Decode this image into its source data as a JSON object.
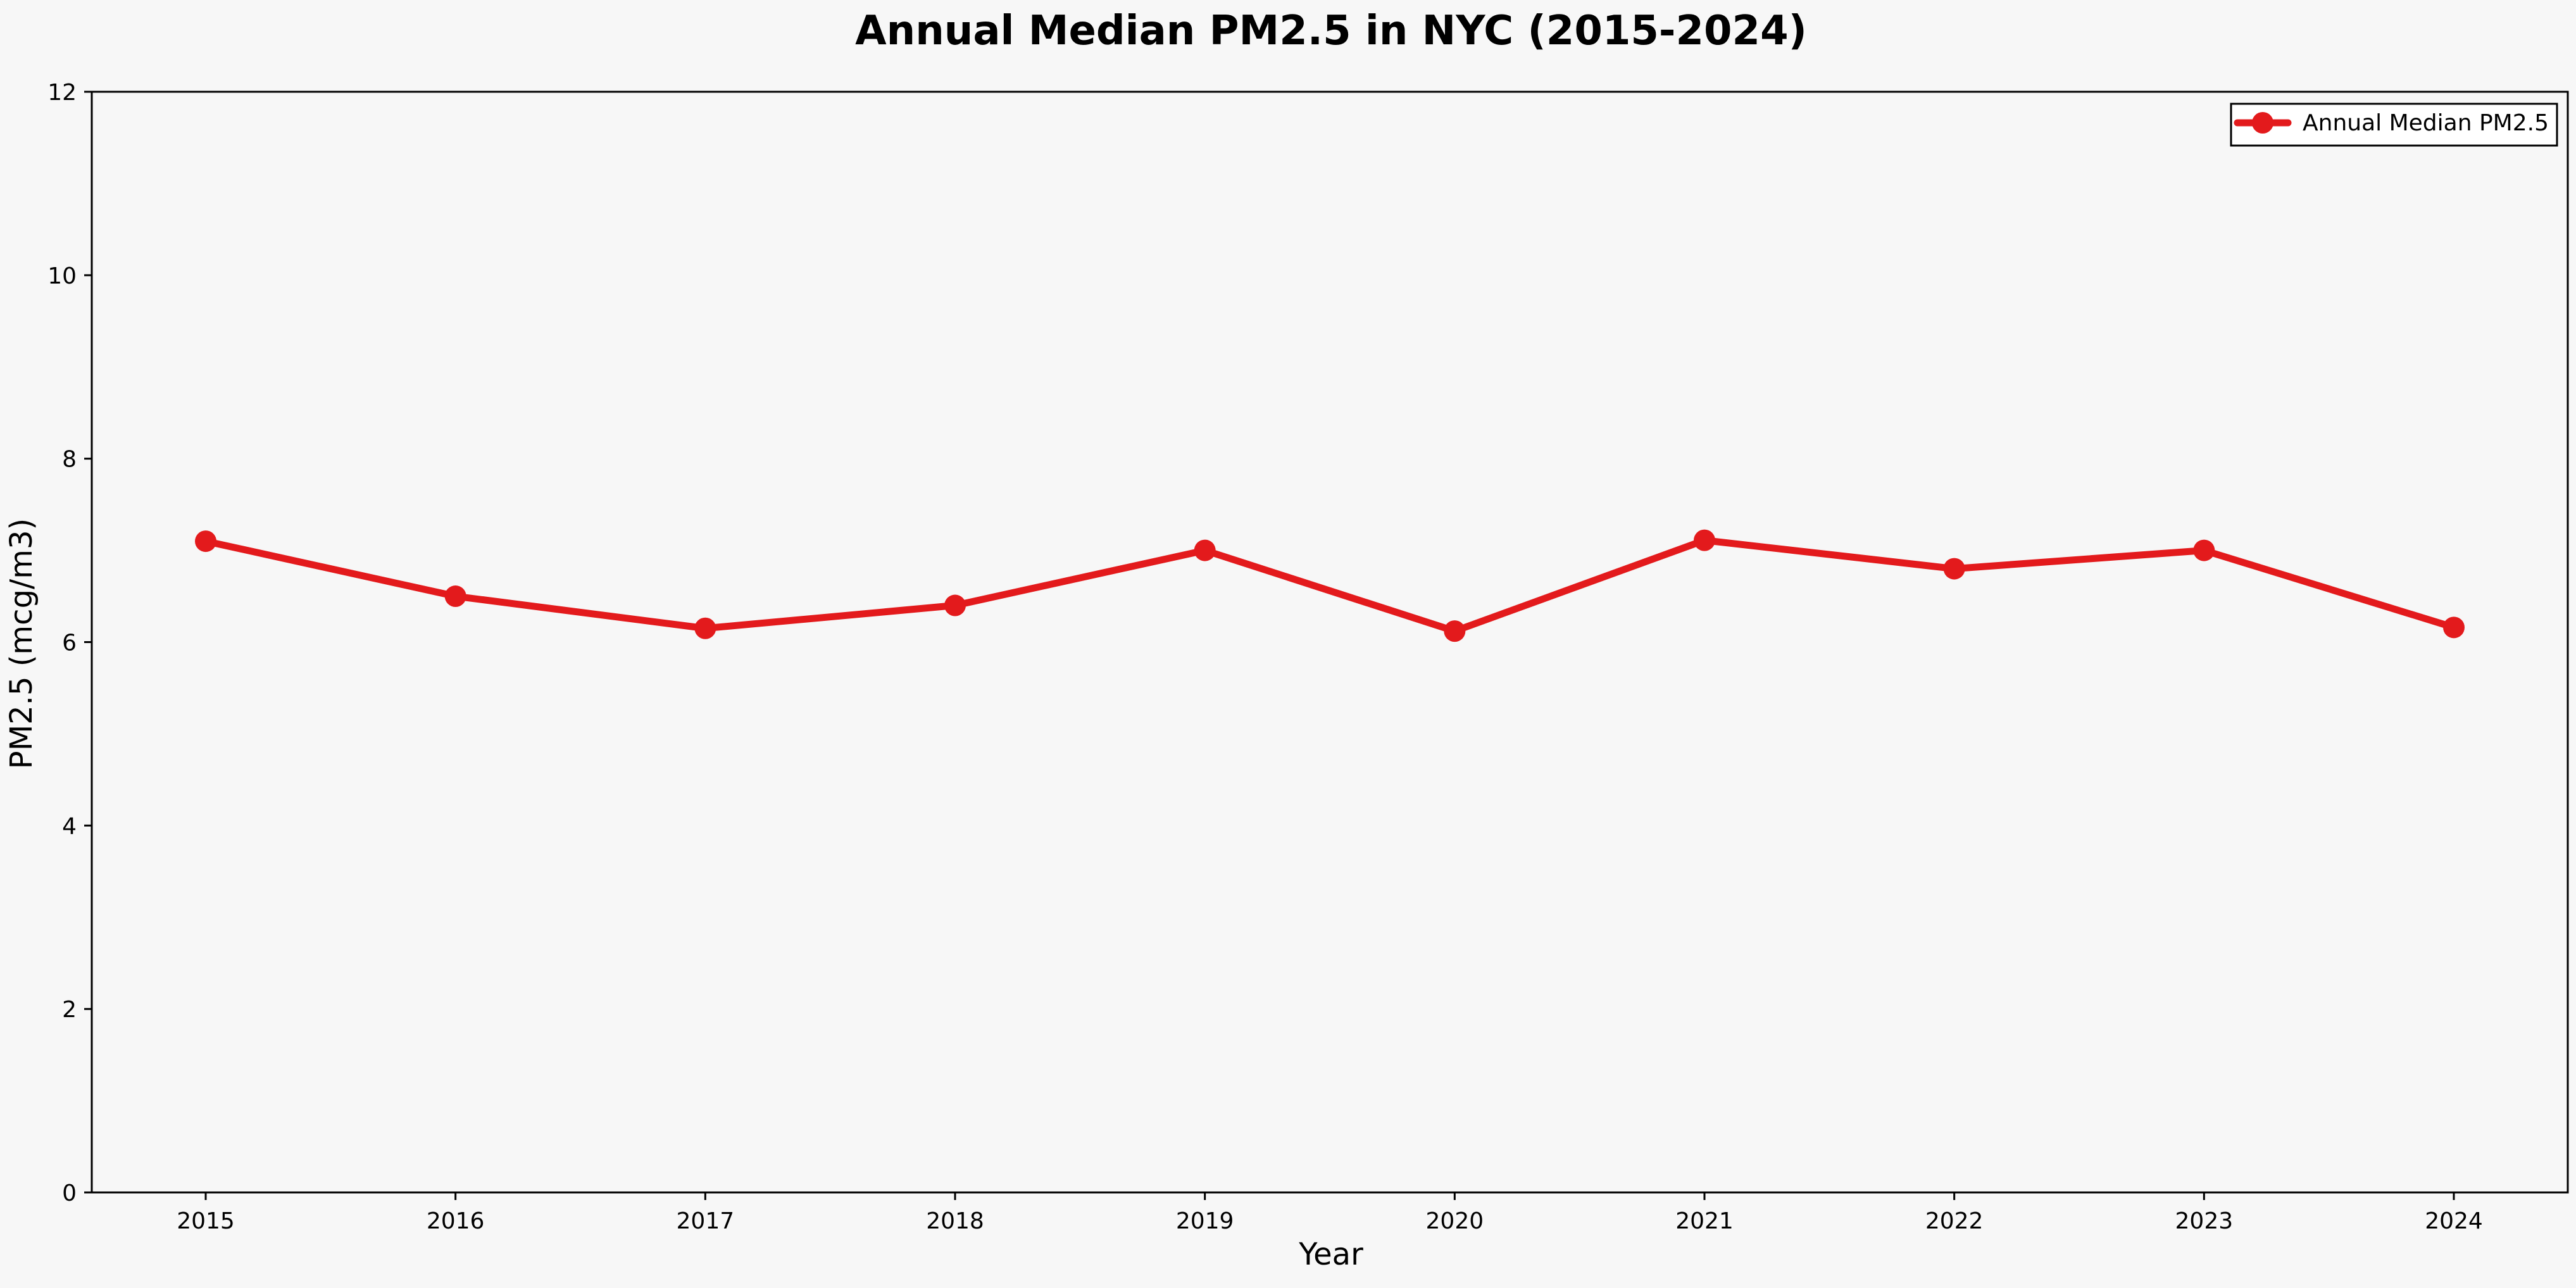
{
  "chart_data": {
    "type": "line",
    "title": "Annual Median PM2.5 in NYC (2015-2024)",
    "xlabel": "Year",
    "ylabel": "PM2.5 (mcg/m3)",
    "categories": [
      "2015",
      "2016",
      "2017",
      "2018",
      "2019",
      "2020",
      "2021",
      "2022",
      "2023",
      "2024"
    ],
    "series": [
      {
        "name": "Annual Median PM2.5",
        "values": [
          7.1,
          6.5,
          6.15,
          6.4,
          7.0,
          6.12,
          7.11,
          6.8,
          7.0,
          6.16
        ],
        "color": "#e31a1c"
      }
    ],
    "ylim": [
      0,
      12
    ],
    "yticks": [
      0,
      2,
      4,
      6,
      8,
      10,
      12
    ],
    "grid": false,
    "legend_position": "top-right",
    "background_color": "#f7f7f7"
  }
}
